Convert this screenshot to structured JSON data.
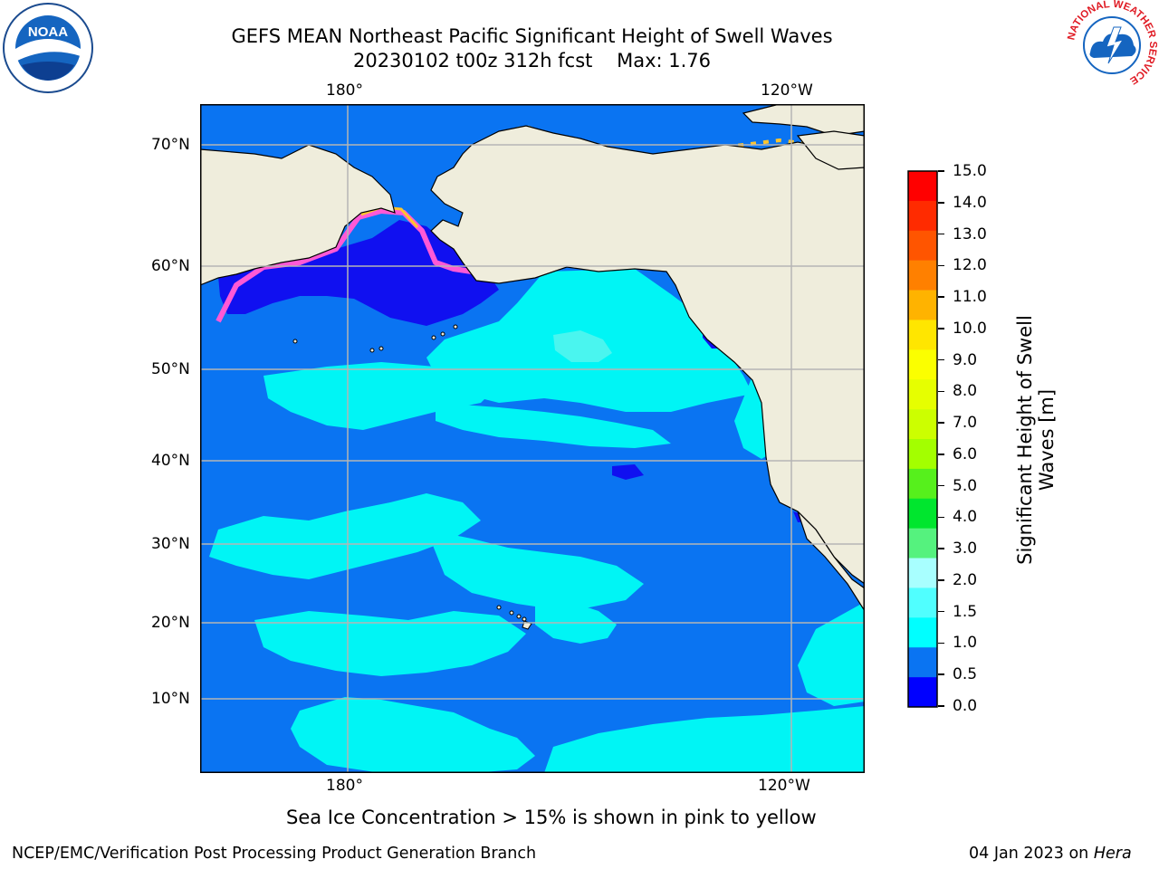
{
  "title": {
    "line1": "GEFS MEAN Northeast Pacific Significant Height of Swell Waves",
    "line2_date": "20230102 t00z 312h fcst",
    "line2_max": "Max: 1.76"
  },
  "map": {
    "top_lon_labels": [
      "180°",
      "120°W"
    ],
    "bottom_lon_labels": [
      "180°",
      "120°W"
    ],
    "lat_labels": [
      "70°N",
      "60°N",
      "50°N",
      "40°N",
      "30°N",
      "20°N",
      "10°N"
    ],
    "colors": {
      "land": "#efeddc",
      "ocean_deep": "#0a74f2",
      "swell_cyan": "#00f5f5",
      "swell_blue": "#1010f0",
      "ice_pink": "#ff59d6",
      "ice_yellow": "#ffc52e",
      "grid": "#b5b5b5"
    }
  },
  "colorbar": {
    "ticks": [
      "15.0",
      "14.0",
      "13.0",
      "12.0",
      "11.0",
      "10.0",
      "9.0",
      "8.0",
      "7.0",
      "6.0",
      "5.0",
      "4.0",
      "3.0",
      "2.0",
      "1.5",
      "1.0",
      "0.5",
      "0.0"
    ],
    "segments_top_to_bottom": [
      "#ff0000",
      "#ff2b00",
      "#ff5500",
      "#ff8000",
      "#ffb300",
      "#ffe600",
      "#fbff00",
      "#e6ff00",
      "#ccff00",
      "#a3ff00",
      "#56f01c",
      "#00e62e",
      "#55f27e",
      "#a8ffff",
      "#50ffff",
      "#00ffff",
      "#0a74f2",
      "#0000ff"
    ],
    "label_line1": "Significant Height of Swell",
    "label_line2": "Waves [m]"
  },
  "note": "Sea Ice Concentration > 15% is shown in pink to yellow",
  "footer": {
    "left": "NCEP/EMC/Verification Post Processing Product Generation Branch",
    "date": "04 Jan 2023 on",
    "machine": "Hera"
  },
  "logos": {
    "noaa_text": "NOAA",
    "nws_text": "NATIONAL WEATHER SERVICE"
  }
}
